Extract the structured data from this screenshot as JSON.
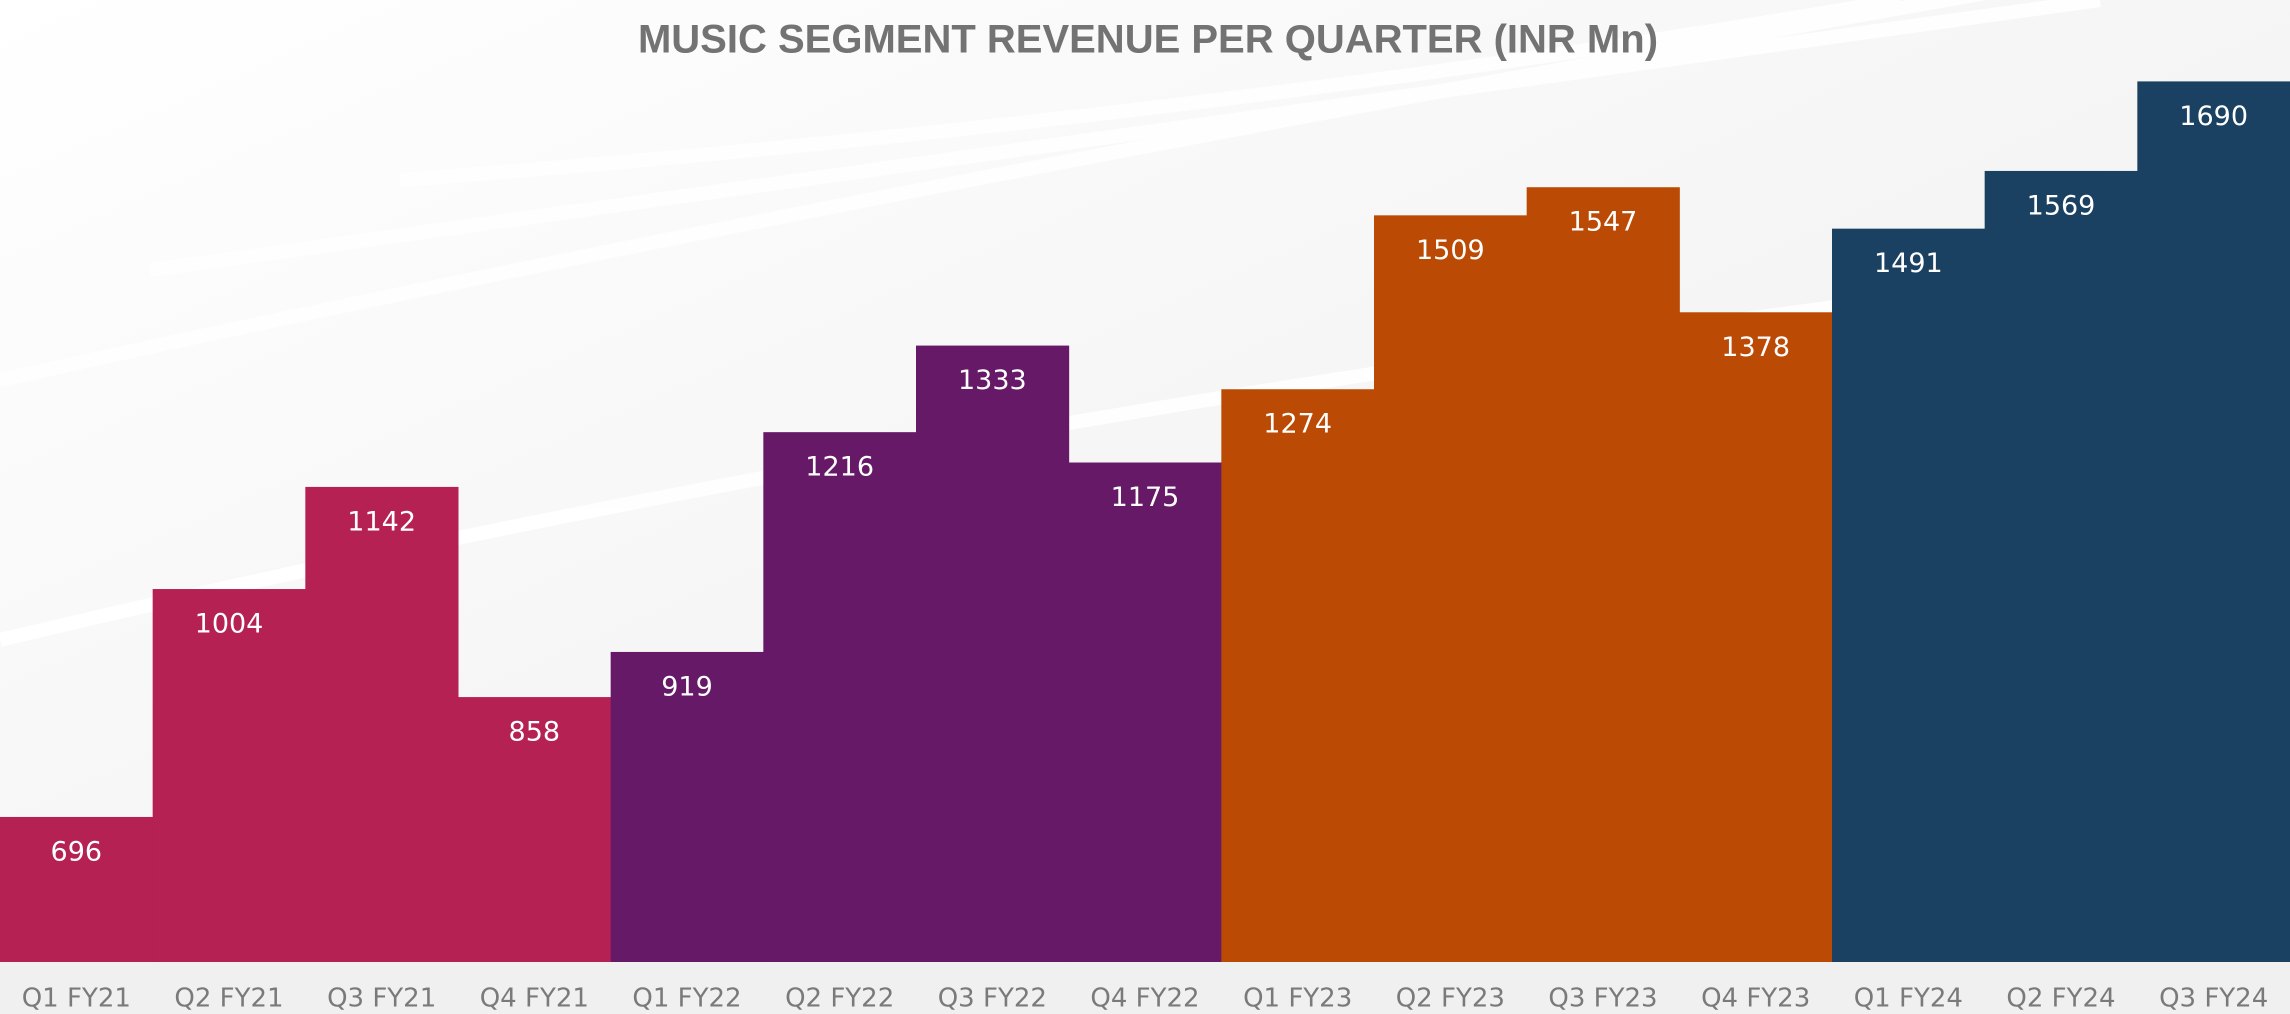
{
  "chart_data": {
    "type": "bar",
    "title": "MUSIC SEGMENT REVENUE PER QUARTER (INR Mn)",
    "categories": [
      "Q1 FY21",
      "Q2 FY21",
      "Q3 FY21",
      "Q4 FY21",
      "Q1 FY22",
      "Q2 FY22",
      "Q3 FY22",
      "Q4 FY22",
      "Q1 FY23",
      "Q2 FY23",
      "Q3 FY23",
      "Q4 FY23",
      "Q1 FY24",
      "Q2 FY24",
      "Q3 FY24"
    ],
    "values": [
      696,
      1004,
      1142,
      858,
      919,
      1216,
      1333,
      1175,
      1274,
      1509,
      1547,
      1378,
      1491,
      1569,
      1690
    ],
    "colors": [
      "#b52153",
      "#b52153",
      "#b52153",
      "#b52153",
      "#651966",
      "#651966",
      "#651966",
      "#651966",
      "#bb4a04",
      "#bb4a04",
      "#bb4a04",
      "#bb4a04",
      "#1b4162",
      "#1b4162",
      "#1b4162"
    ],
    "ylim": [
      500,
      1800
    ]
  }
}
